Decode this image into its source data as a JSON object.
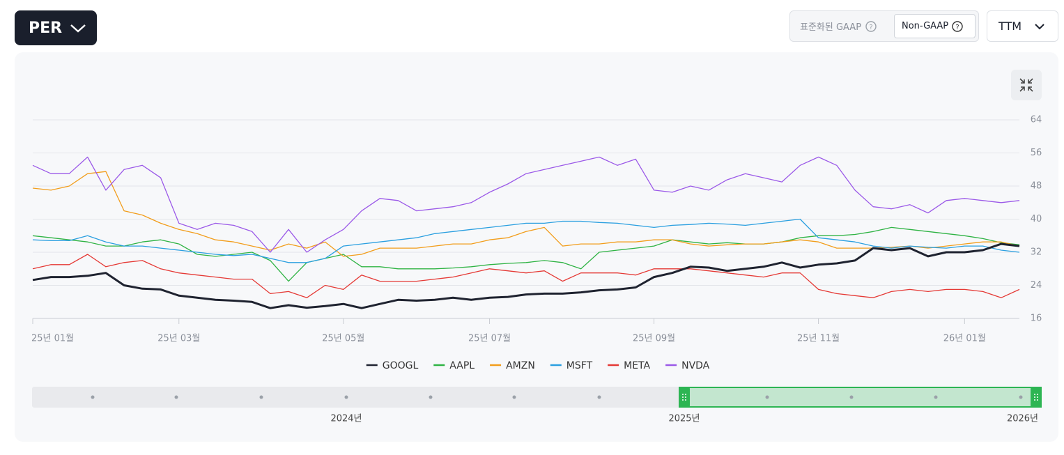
{
  "header": {
    "metric_button": "PER",
    "gaap_label": "표준화된 GAAP",
    "non_gaap_label": "Non-GAAP",
    "period_button": "TTM"
  },
  "chart_data": {
    "type": "line",
    "categories": [
      "25년 01월",
      null,
      null,
      null,
      null,
      null,
      null,
      null,
      "25년 03월",
      null,
      null,
      null,
      null,
      null,
      null,
      null,
      null,
      "25년 05월",
      null,
      null,
      null,
      null,
      null,
      null,
      null,
      "25년 07월",
      null,
      null,
      null,
      null,
      null,
      null,
      null,
      null,
      "25년 09월",
      null,
      null,
      null,
      null,
      null,
      null,
      null,
      null,
      "25년 11월",
      null,
      null,
      null,
      null,
      null,
      null,
      null,
      "26년 01월",
      null,
      null,
      null
    ],
    "ylim": [
      16,
      64
    ],
    "yticks": [
      16,
      24,
      32,
      40,
      48,
      56,
      64
    ],
    "grid": true,
    "series": [
      {
        "name": "GOOGL",
        "color": "#1f2330",
        "values": [
          25.3,
          26,
          26,
          26.3,
          27,
          24,
          23.2,
          23,
          21.5,
          21,
          20.5,
          20.3,
          20,
          18.5,
          19.2,
          18.6,
          19,
          19.5,
          18.5,
          19.5,
          20.5,
          20.3,
          20.5,
          21,
          20.5,
          21,
          21.2,
          21.8,
          22,
          22,
          22.3,
          22.8,
          23,
          23.5,
          26,
          27,
          28.5,
          28.3,
          27.5,
          28,
          28.5,
          29.5,
          28.3,
          29,
          29.3,
          30,
          33,
          32.5,
          33,
          31,
          32,
          32,
          32.5,
          34,
          33.5
        ]
      },
      {
        "name": "AAPL",
        "color": "#2fb344",
        "values": [
          36,
          35.5,
          35,
          34.5,
          33.5,
          33.5,
          34.5,
          35,
          34,
          31.5,
          31,
          31.5,
          32,
          30,
          25,
          29.5,
          30.5,
          31.5,
          28.5,
          28.5,
          28,
          28,
          28,
          28.2,
          28.5,
          29,
          29.3,
          29.5,
          30,
          29.5,
          28,
          32,
          32.5,
          33,
          33.5,
          35,
          34.5,
          34,
          34.3,
          34,
          34,
          34.5,
          35.5,
          36,
          36,
          36.3,
          37,
          38,
          37.5,
          37,
          36.5,
          36,
          35.3,
          34.3,
          33.8
        ]
      },
      {
        "name": "AMZN",
        "color": "#f29d1b",
        "values": [
          47.5,
          47,
          48,
          51,
          51.5,
          42,
          41,
          39,
          37.5,
          36.5,
          35,
          34.5,
          33.5,
          32.5,
          34,
          33,
          34.5,
          31,
          31.5,
          33,
          33,
          33,
          33.5,
          34,
          34,
          35,
          35.5,
          37,
          38,
          33.5,
          34,
          34,
          34.5,
          34.5,
          35,
          35,
          34,
          33.5,
          33.8,
          34,
          34,
          34.5,
          35,
          34.5,
          33,
          33,
          33,
          33.2,
          33.5,
          33,
          33.5,
          34,
          34.5,
          34.5,
          33.5
        ]
      },
      {
        "name": "MSFT",
        "color": "#2a9fe0",
        "values": [
          35,
          34.8,
          34.8,
          36,
          34.5,
          33.5,
          33.5,
          33,
          32.5,
          32,
          31.5,
          31.2,
          31.5,
          30.5,
          29.5,
          29.5,
          30.5,
          33.5,
          34,
          34.5,
          35,
          35.5,
          36.5,
          37,
          37.5,
          38,
          38.5,
          39,
          39,
          39.5,
          39.5,
          39.2,
          39,
          38.5,
          38,
          38.5,
          38.7,
          39,
          38.8,
          38.5,
          39,
          39.5,
          40,
          35.5,
          35,
          34.5,
          33.5,
          33,
          33.5,
          33.2,
          33,
          33.5,
          33.5,
          32.5,
          32
        ]
      },
      {
        "name": "META",
        "color": "#e53935",
        "values": [
          28,
          29,
          29,
          31.5,
          28.5,
          29.5,
          30,
          28,
          27,
          26.5,
          26,
          25.5,
          25.5,
          22,
          22.5,
          21,
          24,
          23,
          26.5,
          25,
          25,
          25,
          25.5,
          26,
          27,
          28,
          27.5,
          27,
          27.5,
          25,
          27,
          27,
          27,
          26.5,
          28,
          28,
          28,
          27.5,
          27,
          26.5,
          26,
          27,
          27,
          23,
          22,
          21.5,
          21,
          22.5,
          23,
          22.5,
          23,
          23,
          22.5,
          21,
          23
        ]
      },
      {
        "name": "NVDA",
        "color": "#9b59e8",
        "values": [
          53,
          51,
          51,
          55,
          47,
          52,
          53,
          50,
          39,
          37.5,
          39,
          38.5,
          37,
          32,
          37.5,
          32,
          35,
          37.5,
          42,
          45,
          44.5,
          42,
          42.5,
          43,
          44,
          46.5,
          48.5,
          51,
          52,
          53,
          54,
          55,
          53,
          54.5,
          47,
          46.5,
          48,
          47,
          49.5,
          51,
          50,
          49,
          53,
          55,
          53,
          47,
          43,
          42.5,
          43.5,
          41.5,
          44.5,
          45,
          44.5,
          44,
          44.5
        ]
      }
    ]
  },
  "navigator": {
    "labels": [
      "2024년",
      "2025년",
      "2026년"
    ]
  }
}
